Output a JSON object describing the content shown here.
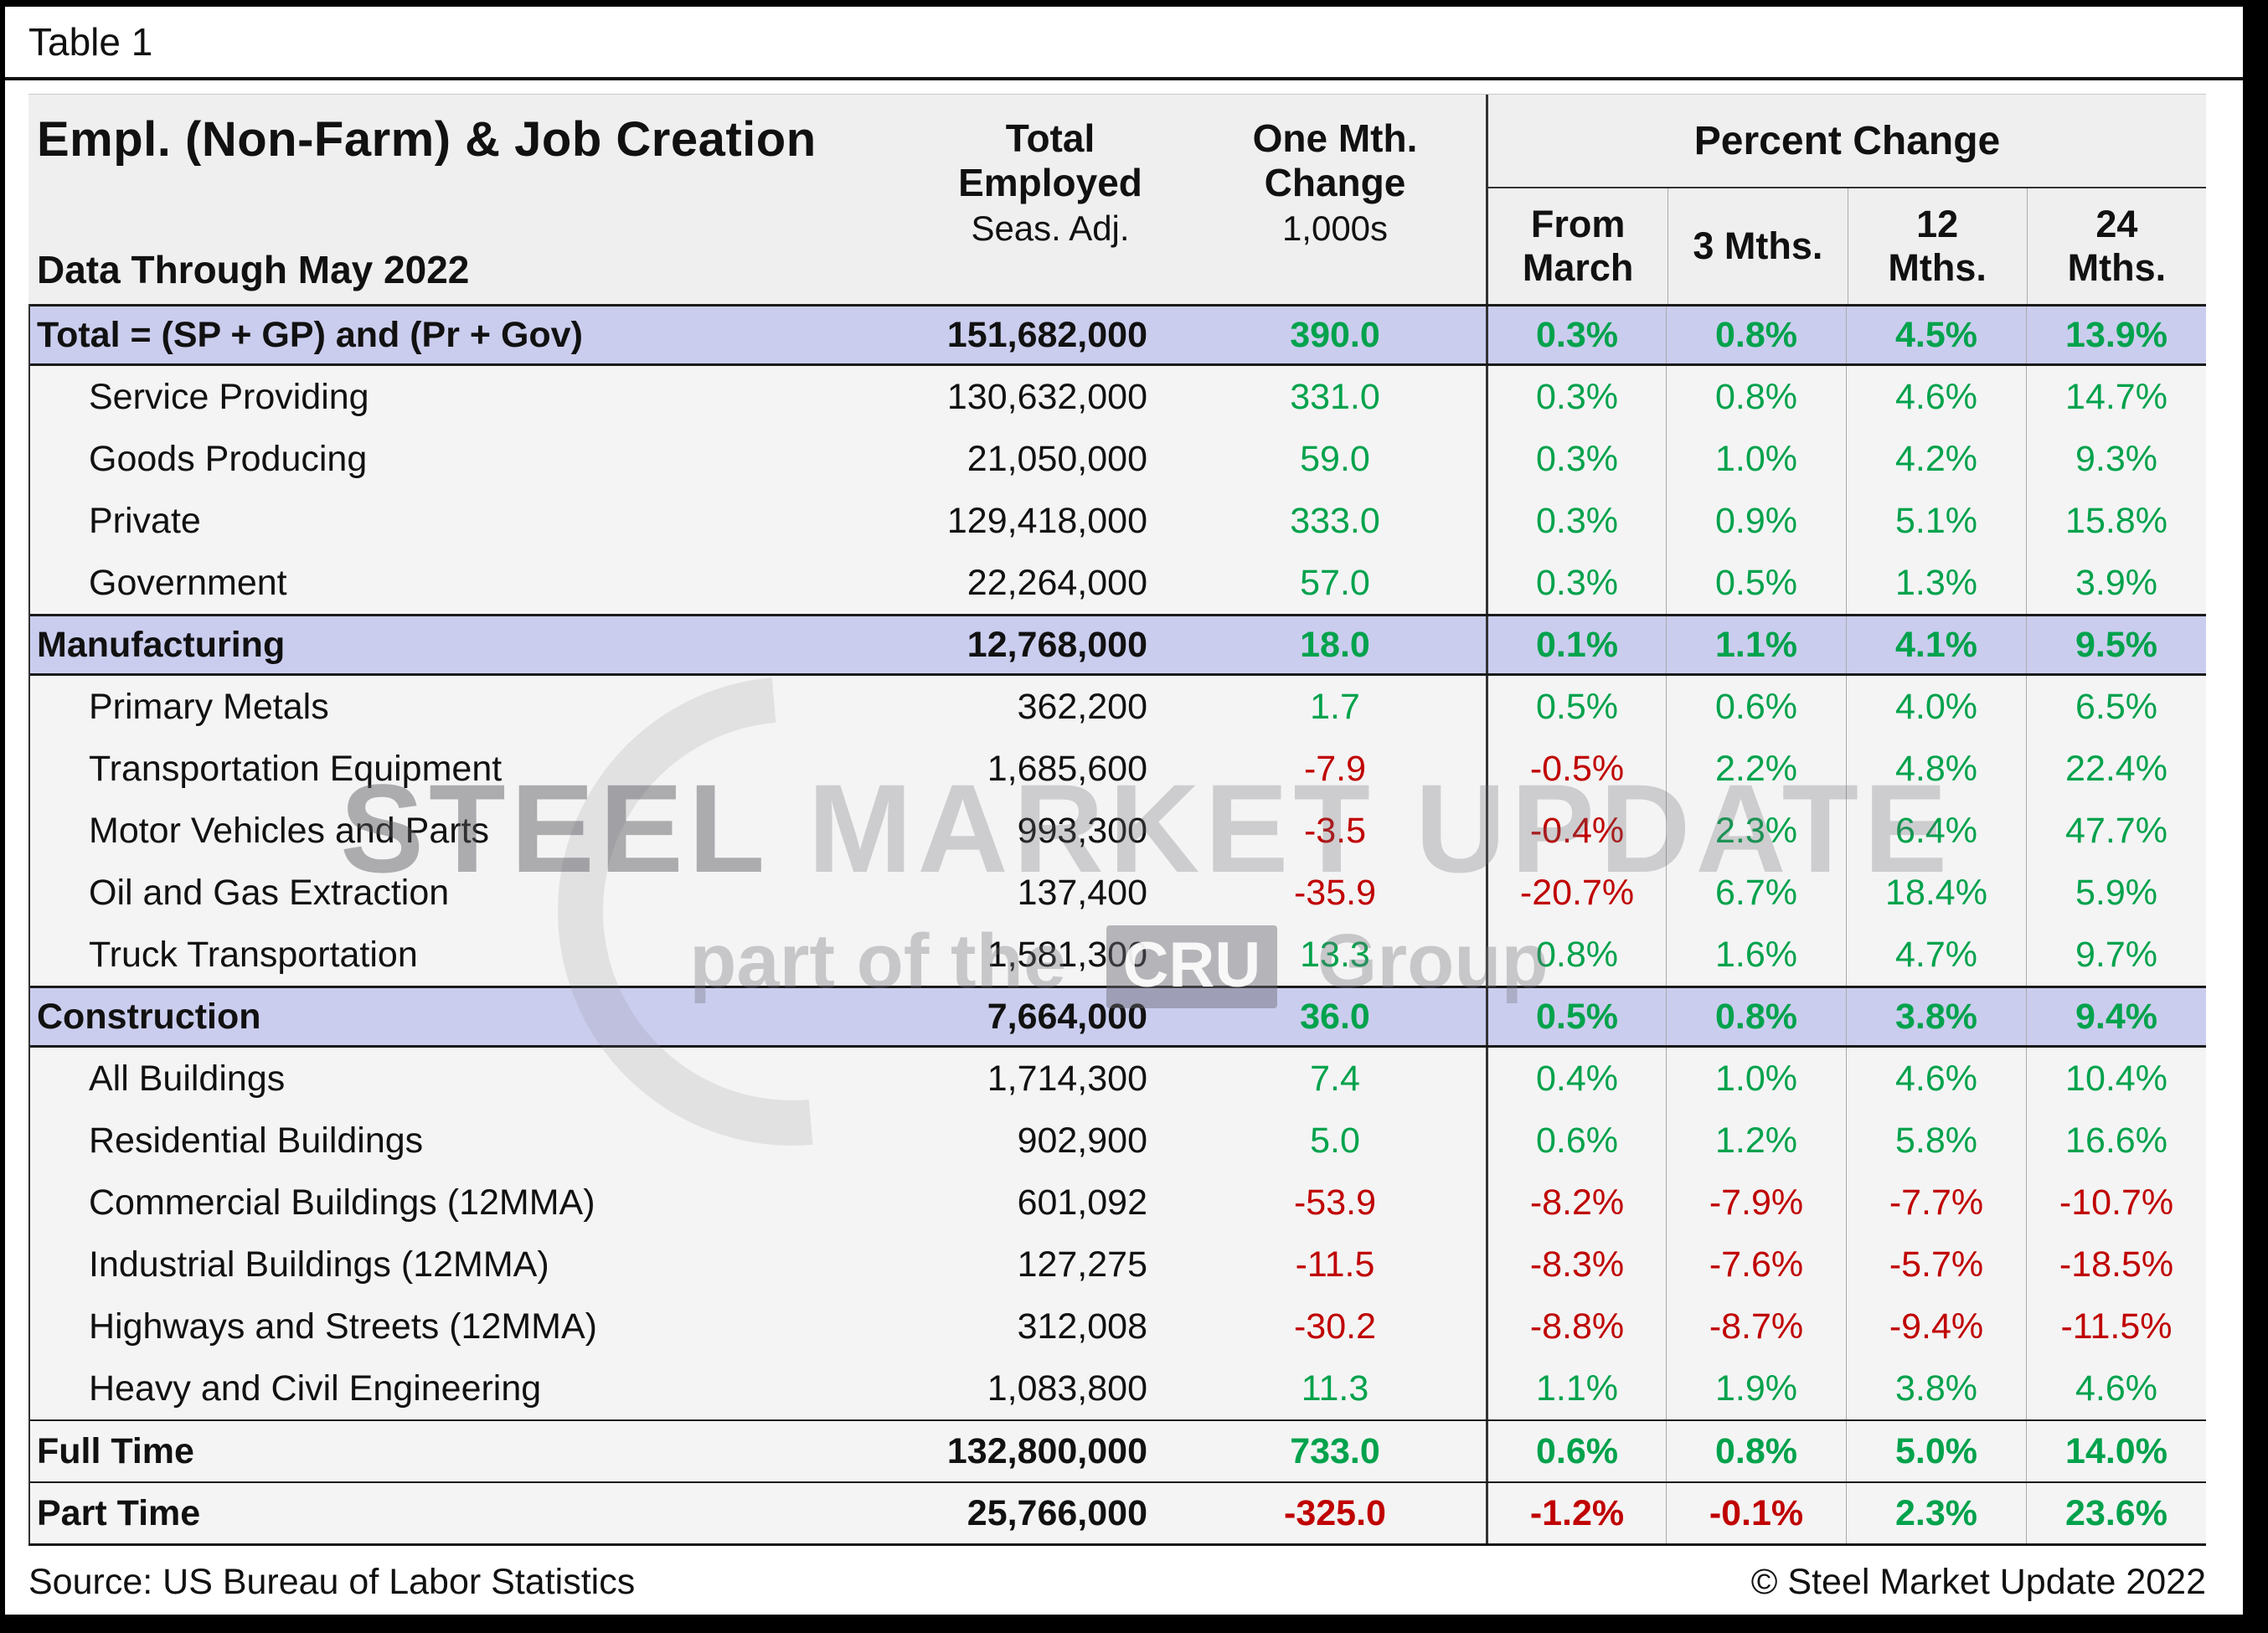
{
  "page": {
    "tab_title": "Table 1",
    "source": "Source: US Bureau of Labor Statistics",
    "copyright": "© Steel Market Update 2022"
  },
  "colors": {
    "positive": "#00A24C",
    "negative": "#C00000",
    "section_highlight": "#CBCDEE"
  },
  "watermark": {
    "word1": "STEEL",
    "rest": " MARKET UPDATE",
    "line2_prefix": "part of the",
    "badge": "CRU",
    "line2_suffix": "Group"
  },
  "table": {
    "title": "Empl. (Non-Farm) & Job Creation",
    "subtitle": "Data Through May 2022",
    "col_headers": {
      "employed_line1": "Total Employed",
      "employed_line2": "Seas. Adj.",
      "change_line1": "One Mth. Change",
      "change_line2": "1,000s",
      "percent_group": "Percent Change",
      "sub": [
        "From March",
        "3 Mths.",
        "12 Mths.",
        "24 Mths."
      ]
    },
    "rows": [
      {
        "label": "Total = (SP + GP) and (Pr + Gov)",
        "type": "section",
        "employed": "151,682,000",
        "change": "390.0",
        "pct": [
          "0.3%",
          "0.8%",
          "4.5%",
          "13.9%"
        ]
      },
      {
        "label": "Service Providing",
        "type": "sub",
        "employed": "130,632,000",
        "change": "331.0",
        "pct": [
          "0.3%",
          "0.8%",
          "4.6%",
          "14.7%"
        ]
      },
      {
        "label": "Goods Producing",
        "type": "sub",
        "employed": "21,050,000",
        "change": "59.0",
        "pct": [
          "0.3%",
          "1.0%",
          "4.2%",
          "9.3%"
        ]
      },
      {
        "label": "Private",
        "type": "sub",
        "employed": "129,418,000",
        "change": "333.0",
        "pct": [
          "0.3%",
          "0.9%",
          "5.1%",
          "15.8%"
        ]
      },
      {
        "label": "Government",
        "type": "sub",
        "employed": "22,264,000",
        "change": "57.0",
        "pct": [
          "0.3%",
          "0.5%",
          "1.3%",
          "3.9%"
        ]
      },
      {
        "label": "Manufacturing",
        "type": "section",
        "employed": "12,768,000",
        "change": "18.0",
        "pct": [
          "0.1%",
          "1.1%",
          "4.1%",
          "9.5%"
        ]
      },
      {
        "label": "Primary Metals",
        "type": "sub",
        "employed": "362,200",
        "change": "1.7",
        "pct": [
          "0.5%",
          "0.6%",
          "4.0%",
          "6.5%"
        ]
      },
      {
        "label": "Transportation Equipment",
        "type": "sub",
        "employed": "1,685,600",
        "change": "-7.9",
        "pct": [
          "-0.5%",
          "2.2%",
          "4.8%",
          "22.4%"
        ]
      },
      {
        "label": "Motor Vehicles and Parts",
        "type": "sub",
        "employed": "993,300",
        "change": "-3.5",
        "pct": [
          "-0.4%",
          "2.3%",
          "6.4%",
          "47.7%"
        ]
      },
      {
        "label": "Oil and Gas Extraction",
        "type": "sub",
        "employed": "137,400",
        "change": "-35.9",
        "pct": [
          "-20.7%",
          "6.7%",
          "18.4%",
          "5.9%"
        ]
      },
      {
        "label": "Truck Transportation",
        "type": "sub",
        "employed": "1,581,300",
        "change": "13.3",
        "pct": [
          "0.8%",
          "1.6%",
          "4.7%",
          "9.7%"
        ]
      },
      {
        "label": "Construction",
        "type": "section",
        "employed": "7,664,000",
        "change": "36.0",
        "pct": [
          "0.5%",
          "0.8%",
          "3.8%",
          "9.4%"
        ]
      },
      {
        "label": "All Buildings",
        "type": "sub",
        "employed": "1,714,300",
        "change": "7.4",
        "pct": [
          "0.4%",
          "1.0%",
          "4.6%",
          "10.4%"
        ]
      },
      {
        "label": "Residential Buildings",
        "type": "sub",
        "employed": "902,900",
        "change": "5.0",
        "pct": [
          "0.6%",
          "1.2%",
          "5.8%",
          "16.6%"
        ]
      },
      {
        "label": "Commercial Buildings (12MMA)",
        "type": "sub",
        "employed": "601,092",
        "change": "-53.9",
        "pct": [
          "-8.2%",
          "-7.9%",
          "-7.7%",
          "-10.7%"
        ]
      },
      {
        "label": "Industrial Buildings (12MMA)",
        "type": "sub",
        "employed": "127,275",
        "change": "-11.5",
        "pct": [
          "-8.3%",
          "-7.6%",
          "-5.7%",
          "-18.5%"
        ]
      },
      {
        "label": "Highways and Streets (12MMA)",
        "type": "sub",
        "employed": "312,008",
        "change": "-30.2",
        "pct": [
          "-8.8%",
          "-8.7%",
          "-9.4%",
          "-11.5%"
        ]
      },
      {
        "label": "Heavy and Civil Engineering",
        "type": "sub",
        "employed": "1,083,800",
        "change": "11.3",
        "pct": [
          "1.1%",
          "1.9%",
          "3.8%",
          "4.6%"
        ]
      },
      {
        "label": "Full Time",
        "type": "bold",
        "border_top": true,
        "employed": "132,800,000",
        "change": "733.0",
        "pct": [
          "0.6%",
          "0.8%",
          "5.0%",
          "14.0%"
        ]
      },
      {
        "label": "Part Time",
        "type": "bold",
        "border_top": true,
        "employed": "25,766,000",
        "change": "-325.0",
        "pct": [
          "-1.2%",
          "-0.1%",
          "2.3%",
          "23.6%"
        ]
      }
    ]
  }
}
